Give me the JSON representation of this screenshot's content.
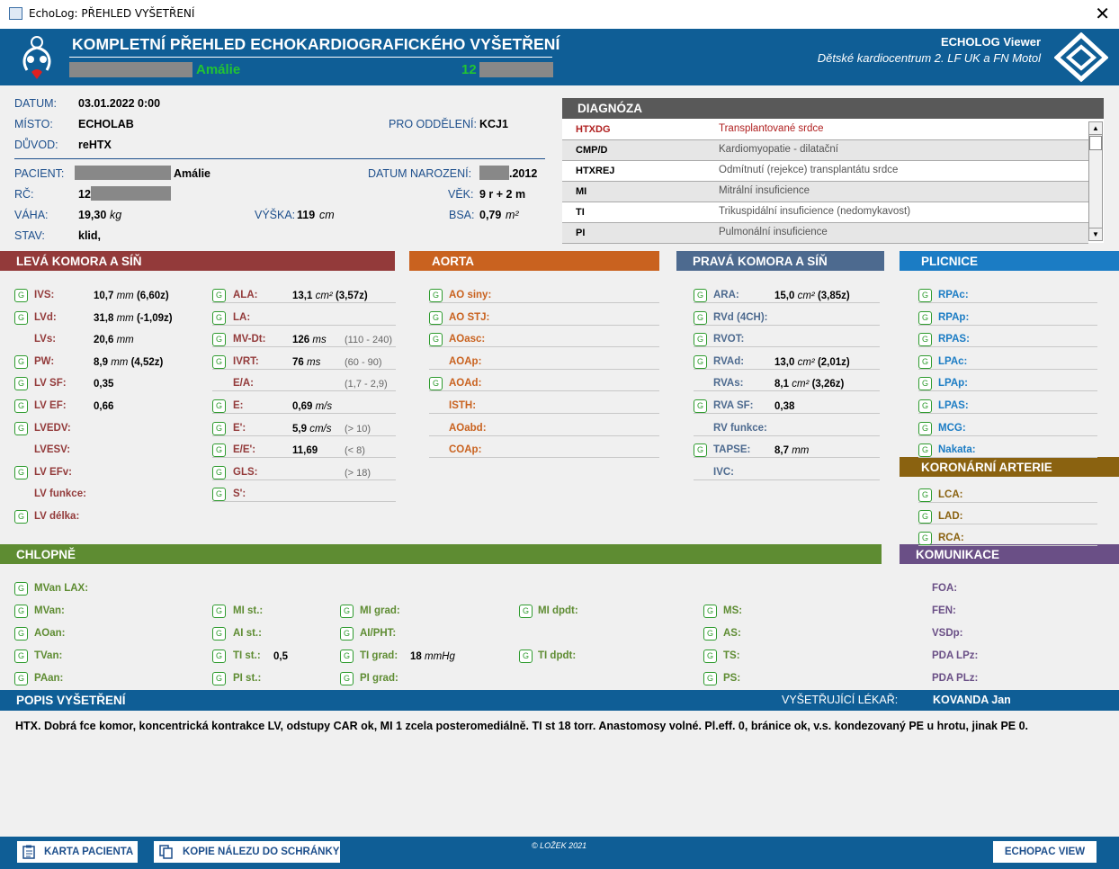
{
  "window": {
    "title": "EchoLog: PŘEHLED VYŠETŘENÍ",
    "close": "✕"
  },
  "header": {
    "title": "KOMPLETNÍ PŘEHLED ECHOKARDIOGRAFICKÉHO VYŠETŘENÍ",
    "patient_name": "Amálie",
    "patient_id": "12",
    "app_name": "ECHOLOG Viewer",
    "institution": "Dětské kardiocentrum 2. LF UK a FN Motol"
  },
  "info": {
    "datum_label": "DATUM:",
    "datum": "03.01.2022  0:00",
    "misto_label": "MÍSTO:",
    "misto": "ECHOLAB",
    "oddeleni_label": "PRO ODDĚLENÍ:",
    "oddeleni": "KCJ1",
    "duvod_label": "DŮVOD:",
    "duvod": "reHTX",
    "pacient_label": "PACIENT:",
    "pacient": "Amálie",
    "narozeni_label": "DATUM NAROZENÍ:",
    "narozeni": ".2012",
    "rc_label": "RČ:",
    "rc": "12",
    "vek_label": "VĚK:",
    "vek": "9 r + 2 m",
    "vaha_label": "VÁHA:",
    "vaha": "19,30",
    "vaha_unit": "kg",
    "vyska_label": "VÝŠKA:",
    "vyska": "119",
    "vyska_unit": "cm",
    "bsa_label": "BSA:",
    "bsa": "0,79",
    "bsa_unit": "m²",
    "stav_label": "STAV:",
    "stav": "klid,"
  },
  "diagnoza": {
    "title": "DIAGNÓZA",
    "rows": [
      {
        "code": "HTXDG",
        "desc": "Transplantované srdce"
      },
      {
        "code": "CMP/D",
        "desc": "Kardiomyopatie - dilatační"
      },
      {
        "code": "HTXREJ",
        "desc": "Odmítnutí (rejekce) transplantátu srdce"
      },
      {
        "code": "MI",
        "desc": "Mitrální insuficience"
      },
      {
        "code": "TI",
        "desc": "Trikuspidální insuficience (nedomykavost)"
      },
      {
        "code": "PI",
        "desc": "Pulmonální insuficience"
      }
    ],
    "scroll_up": "▲",
    "scroll_down": "▼"
  },
  "sections": {
    "lk": "LEVÁ KOMORA A SÍŇ",
    "aorta": "AORTA",
    "pk": "PRAVÁ KOMORA A SÍŇ",
    "plicnice": "PLICNICE",
    "koronarni": "KORONÁRNÍ ARTERIE",
    "chlopne": "CHLOPNĚ",
    "komunikace": "KOMUNIKACE"
  },
  "g": "G",
  "lk1": [
    {
      "l": "IVS:",
      "v": "10,7",
      "u": "mm",
      "z": " (6,60z)",
      "g": 1
    },
    {
      "l": "LVd:",
      "v": "31,8",
      "u": "mm",
      "z": " (-1,09z)",
      "g": 1
    },
    {
      "l": "LVs:",
      "v": "20,6",
      "u": "mm",
      "z": "",
      "g": 0
    },
    {
      "l": "PW:",
      "v": "8,9",
      "u": "mm",
      "z": " (4,52z)",
      "g": 1
    },
    {
      "l": "LV SF:",
      "v": "0,35",
      "u": "",
      "z": "",
      "g": 1
    },
    {
      "l": "LV EF:",
      "v": "0,66",
      "u": "",
      "z": "",
      "g": 1
    },
    {
      "l": "LVEDV:",
      "v": "",
      "u": "",
      "z": "",
      "g": 1
    },
    {
      "l": "LVESV:",
      "v": "",
      "u": "",
      "z": "",
      "g": 0
    },
    {
      "l": "LV EFv:",
      "v": "",
      "u": "",
      "z": "",
      "g": 1
    },
    {
      "l": "LV funkce:",
      "v": "",
      "u": "",
      "z": "",
      "g": 0
    },
    {
      "l": "LV délka:",
      "v": "",
      "u": "",
      "z": "",
      "g": 1
    }
  ],
  "lk2": [
    {
      "l": "ALA:",
      "v": "13,1",
      "u": "cm²",
      "z": " (3,57z)",
      "r": "",
      "g": 1
    },
    {
      "l": "LA:",
      "v": "",
      "u": "",
      "z": "",
      "r": "",
      "g": 1
    },
    {
      "l": "MV-Dt:",
      "v": "126",
      "u": "ms",
      "z": "",
      "r": "(110 - 240)",
      "g": 1
    },
    {
      "l": "IVRT:",
      "v": "76",
      "u": "ms",
      "z": "",
      "r": "(60 - 90)",
      "g": 1
    },
    {
      "l": "E/A:",
      "v": "",
      "u": "",
      "z": "",
      "r": "(1,7 - 2,9)",
      "g": 0
    },
    {
      "l": "E:",
      "v": "0,69",
      "u": "m/s",
      "z": "",
      "r": "",
      "g": 1
    },
    {
      "l": "E':",
      "v": "5,9",
      "u": "cm/s",
      "z": "",
      "r": "(> 10)",
      "g": 1
    },
    {
      "l": "E/E':",
      "v": "11,69",
      "u": "",
      "z": "",
      "r": "(< 8)",
      "g": 1
    },
    {
      "l": "GLS:",
      "v": "",
      "u": "",
      "z": "",
      "r": "(> 18)",
      "g": 1
    },
    {
      "l": "S':",
      "v": "",
      "u": "",
      "z": "",
      "r": "",
      "g": 1
    }
  ],
  "aorta": [
    {
      "l": "AO siny:",
      "g": 1
    },
    {
      "l": "AO STJ:",
      "g": 1
    },
    {
      "l": "AOasc:",
      "g": 1
    },
    {
      "l": "AOAp:",
      "g": 0
    },
    {
      "l": "AOAd:",
      "g": 1
    },
    {
      "l": "ISTH:",
      "g": 0
    },
    {
      "l": "AOabd:",
      "g": 0
    },
    {
      "l": "COAp:",
      "g": 0
    }
  ],
  "pk": [
    {
      "l": "ARA:",
      "v": "15,0",
      "u": "cm²",
      "z": " (3,85z)",
      "g": 1
    },
    {
      "l": "RVd (4CH):",
      "v": "",
      "u": "",
      "z": "",
      "g": 1
    },
    {
      "l": "RVOT:",
      "v": "",
      "u": "",
      "z": "",
      "g": 1
    },
    {
      "l": "RVAd:",
      "v": "13,0",
      "u": "cm²",
      "z": " (2,01z)",
      "g": 1
    },
    {
      "l": "RVAs:",
      "v": "8,1",
      "u": "cm²",
      "z": " (3,26z)",
      "g": 0
    },
    {
      "l": "RVA SF:",
      "v": "0,38",
      "u": "",
      "z": "",
      "g": 1
    },
    {
      "l": "RV funkce:",
      "v": "",
      "u": "",
      "z": "",
      "g": 0
    },
    {
      "l": "TAPSE:",
      "v": "8,7",
      "u": "mm",
      "z": "",
      "g": 1
    },
    {
      "l": "IVC:",
      "v": "",
      "u": "",
      "z": "",
      "g": 0
    }
  ],
  "plicnice": [
    {
      "l": "RPAc:"
    },
    {
      "l": "RPAp:"
    },
    {
      "l": "RPAS:"
    },
    {
      "l": "LPAc:"
    },
    {
      "l": "LPAp:"
    },
    {
      "l": "LPAS:"
    },
    {
      "l": "MCG:"
    },
    {
      "l": "Nakata:"
    }
  ],
  "koronarni": [
    {
      "l": "LCA:"
    },
    {
      "l": "LAD:"
    },
    {
      "l": "RCA:"
    }
  ],
  "chlopne": {
    "mvanlax": "MVan LAX:",
    "c1": [
      "MVan:",
      "AOan:",
      "TVan:",
      "PAan:"
    ],
    "c2": [
      "MI st.:",
      "AI st.:",
      "TI st.:",
      "PI st.:"
    ],
    "c2v": [
      "",
      "",
      "0,5",
      ""
    ],
    "c3": [
      "MI grad:",
      "AI/PHT:",
      "TI grad:",
      "PI grad:"
    ],
    "c3v": [
      "",
      "",
      "18",
      ""
    ],
    "c3u": [
      "",
      "",
      "mmHg",
      ""
    ],
    "c4": [
      "MI dpdt:",
      "",
      "TI dpdt:",
      ""
    ],
    "c5": [
      "MS:",
      "AS:",
      "TS:",
      "PS:"
    ]
  },
  "komunikace": [
    "FOA:",
    "FEN:",
    "VSDp:",
    "PDA LPz:",
    "PDA PLz:"
  ],
  "popis": {
    "title": "POPIS VYŠETŘENÍ",
    "lekar_label": "VYŠETŘUJÍCÍ LÉKAŘ:",
    "lekar": "KOVANDA Jan",
    "text": "HTX. Dobrá fce komor, koncentrická kontrakce LV, odstupy CAR ok, MI 1 zcela posteromediálně. TI st 18 torr. Anastomosy volné. Pl.eff. 0, bránice ok, v.s. kondezovaný PE u hrotu, jinak PE 0."
  },
  "footer": {
    "karta": "KARTA PACIENTA",
    "kopie": "KOPIE NÁLEZU DO SCHRÁNKY",
    "copyright": "© LOŽEK 2021",
    "echopac": "ECHOPAC VIEW"
  },
  "colors": {
    "header": "#0f5e96",
    "lk": "#933a3a",
    "aorta": "#c9621f",
    "pk": "#4d6a8f",
    "plicnice": "#1b7cc4",
    "koronarni": "#8a6210",
    "chlopne": "#5e8c32",
    "komunikace": "#6a4f86"
  }
}
